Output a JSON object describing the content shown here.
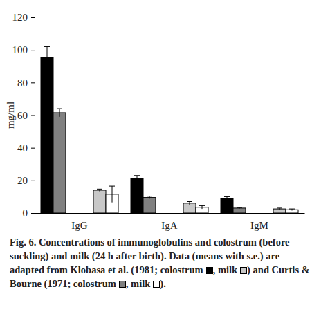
{
  "chart_data": {
    "type": "bar",
    "y_label": "mg/ml",
    "categories": [
      "IgG",
      "IgA",
      "IgM"
    ],
    "series": [
      {
        "color": "#000000",
        "values": [
          95.5,
          21,
          9
        ],
        "errors": [
          6.5,
          2,
          1
        ]
      },
      {
        "color": "#808080",
        "values": [
          61.5,
          9.5,
          3
        ],
        "errors": [
          2.5,
          0.8,
          0.3
        ]
      },
      {
        "color": "#c8c8c8",
        "values": [
          14,
          6,
          2.5
        ],
        "errors": [
          0.7,
          1,
          0.5
        ]
      },
      {
        "color": "#ffffff",
        "values": [
          11.5,
          3.5,
          2
        ],
        "errors": [
          5,
          1,
          0.5
        ]
      }
    ],
    "ylim": [
      0,
      120
    ],
    "yticks": [
      0,
      20,
      40,
      60,
      80,
      100,
      120
    ],
    "grid": false,
    "caption": [
      "Fig. 6. Concentrations of immunoglobulins and colostrum (before suckling) and milk (24 h after birth). Data (means with s.e.) are adapted from Klobasa et al. (1981; colostrum",
      {
        "series": 0
      },
      ", milk",
      {
        "series": 2
      },
      ") and Curtis & Bourne (1971; colostrum",
      {
        "series": 1
      },
      ", milk",
      {
        "series": 3
      },
      ")."
    ]
  }
}
